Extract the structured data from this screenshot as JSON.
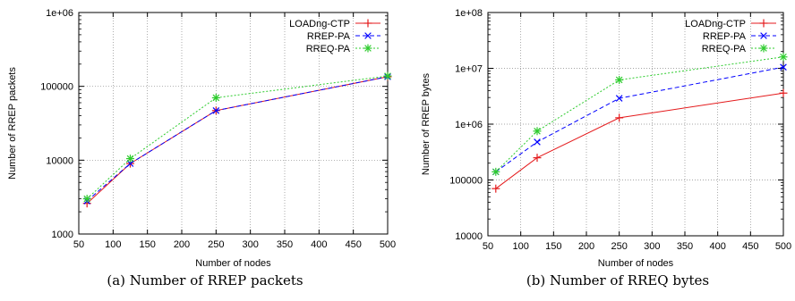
{
  "chart_data": [
    {
      "type": "line",
      "caption": "(a) Number of RREP packets",
      "xlabel": "Number of nodes",
      "ylabel": "Number of RREP packets",
      "y_scale": "log",
      "xlim": [
        50,
        500
      ],
      "ylim": [
        1000,
        1000000
      ],
      "x_ticks": [
        50,
        100,
        150,
        200,
        250,
        300,
        350,
        400,
        450,
        500
      ],
      "x_tick_labels": [
        "50",
        "100",
        "150",
        "200",
        "250",
        "300",
        "350",
        "400",
        "450",
        "500"
      ],
      "y_ticks": [
        1000,
        10000,
        100000,
        1000000
      ],
      "y_tick_labels": [
        "1000",
        "10000",
        "100000",
        "1e+06"
      ],
      "grid": true,
      "legend_position": "top-right",
      "series": [
        {
          "name": "LOADng-CTP",
          "color": "#e41a1c",
          "dash": "solid",
          "marker": "plus",
          "x": [
            62,
            125,
            250,
            500
          ],
          "y": [
            2600,
            9000,
            47000,
            135000
          ]
        },
        {
          "name": "RREP-PA",
          "color": "#0000ff",
          "dash": "dashed",
          "marker": "x",
          "x": [
            62,
            125,
            250,
            500
          ],
          "y": [
            2800,
            9000,
            47000,
            135000
          ]
        },
        {
          "name": "RREQ-PA",
          "color": "#2ecc2e",
          "dash": "dotted",
          "marker": "star",
          "x": [
            62,
            125,
            250,
            500
          ],
          "y": [
            3000,
            10500,
            70000,
            138000
          ]
        }
      ]
    },
    {
      "type": "line",
      "caption": "(b) Number of RREQ bytes",
      "xlabel": "Number of nodes",
      "ylabel": "Number of RREP bytes",
      "y_scale": "log",
      "xlim": [
        50,
        500
      ],
      "ylim": [
        10000,
        100000000
      ],
      "x_ticks": [
        50,
        100,
        150,
        200,
        250,
        300,
        350,
        400,
        450,
        500
      ],
      "x_tick_labels": [
        "50",
        "100",
        "150",
        "200",
        "250",
        "300",
        "350",
        "400",
        "450",
        "500"
      ],
      "y_ticks": [
        10000,
        100000,
        1000000,
        10000000,
        100000000
      ],
      "y_tick_labels": [
        "10000",
        "100000",
        "1e+06",
        "1e+07",
        "1e+08"
      ],
      "grid": true,
      "legend_position": "top-right",
      "series": [
        {
          "name": "LOADng-CTP",
          "color": "#e41a1c",
          "dash": "solid",
          "marker": "plus",
          "x": [
            62,
            125,
            250,
            500
          ],
          "y": [
            70000,
            250000,
            1300000,
            3600000
          ]
        },
        {
          "name": "RREP-PA",
          "color": "#0000ff",
          "dash": "dashed",
          "marker": "x",
          "x": [
            62,
            125,
            250,
            500
          ],
          "y": [
            140000,
            480000,
            2900000,
            10500000
          ]
        },
        {
          "name": "RREQ-PA",
          "color": "#2ecc2e",
          "dash": "dotted",
          "marker": "star",
          "x": [
            62,
            125,
            250,
            500
          ],
          "y": [
            140000,
            750000,
            6200000,
            16000000
          ]
        }
      ]
    }
  ]
}
